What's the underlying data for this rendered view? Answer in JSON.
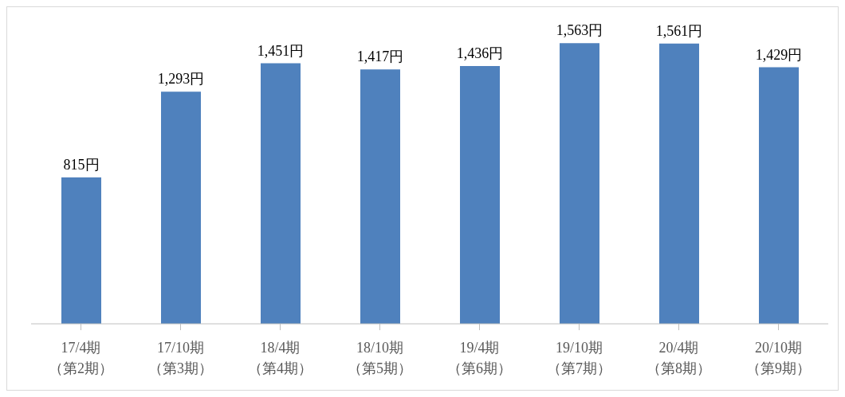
{
  "chart_data": {
    "type": "bar",
    "categories": [
      "17/4期（第2期）",
      "17/10期（第3期）",
      "18/4期（第4期）",
      "18/10期（第5期）",
      "19/4期（第6期）",
      "19/10期（第7期）",
      "20/4期（第8期）",
      "20/10期（第9期）"
    ],
    "values": [
      815,
      1293,
      1451,
      1417,
      1436,
      1563,
      1561,
      1429
    ],
    "value_labels": [
      "815円",
      "1,293円",
      "1,451円",
      "1,417円",
      "1,436円",
      "1,563円",
      "1,561円",
      "1,429円"
    ],
    "color": "#4f81bd",
    "grid": false,
    "legend": false
  }
}
